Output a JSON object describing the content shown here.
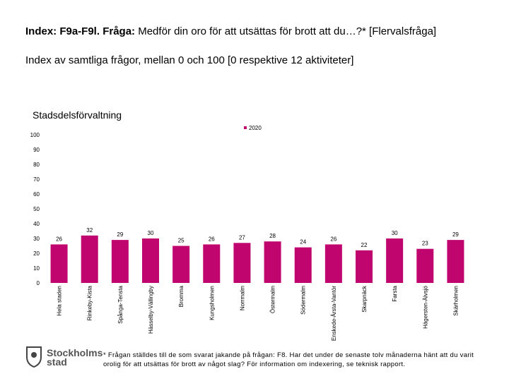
{
  "chart_data": {
    "type": "bar",
    "title_bold": "Index: F9a-F9l. Fråga:",
    "title": "Medför din oro för att utsättas för brott att du…?* [Flervalsfråga]",
    "subtitle": "Index av samtliga frågor, mellan 0 och 100 [0 respektive 12 aktiviteter]",
    "axis_title": "Stadsdelsförvaltning",
    "categories": [
      "Hela staden",
      "Rinkeby-Kista",
      "Spånga-Tensta",
      "Hässelby-Vällingby",
      "Bromma",
      "Kungsholmen",
      "Norrmalm",
      "Östermalm",
      "Södermalm",
      "Enskede-Årsta-Vantör",
      "Skarpnäck",
      "Farsta",
      "Hägersten-Älvsjö",
      "Skärholmen"
    ],
    "series": [
      {
        "name": "2020",
        "color": "#c0066e",
        "values": [
          26,
          32,
          29,
          30,
          25,
          26,
          27,
          28,
          24,
          26,
          22,
          30,
          23,
          29
        ]
      }
    ],
    "ylim": [
      0,
      100
    ],
    "yticks": [
      0,
      10,
      20,
      30,
      40,
      50,
      60,
      70,
      80,
      90,
      100
    ],
    "footnote": "* Frågan ställdes till de som svarat jakande på frågan: F8. Har det under de senaste tolv månaderna hänt att du varit orolig för att utsättas för brott av något slag? För information om indexering, se teknisk rapport.",
    "logo": [
      "Stockholms",
      "stad"
    ]
  }
}
